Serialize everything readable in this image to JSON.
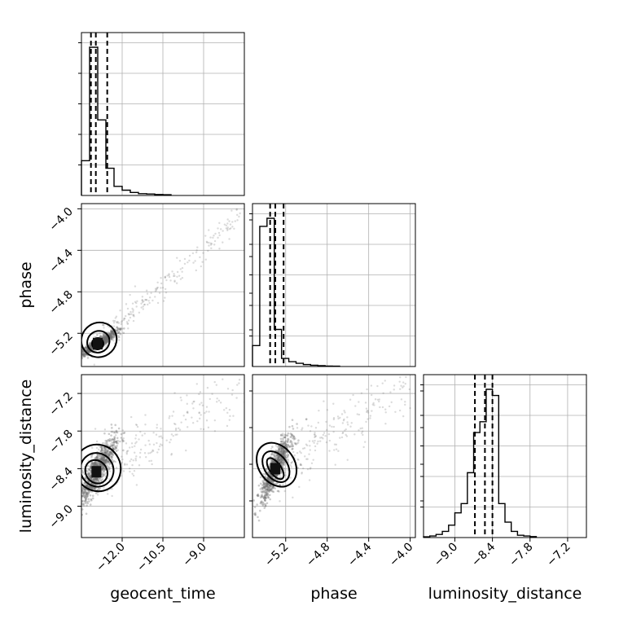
{
  "chart_data": {
    "type": "corner",
    "parameters": [
      "geocent_time",
      "phase",
      "luminosity_distance"
    ],
    "ranges": {
      "geocent_time": [
        -13.5,
        -7.5
      ],
      "phase": [
        -5.52,
        -3.95
      ],
      "luminosity_distance": [
        -9.5,
        -6.9
      ]
    },
    "ticks": {
      "geocent_time": [
        "-12.0",
        "-10.5",
        "-9.0"
      ],
      "phase": [
        "-5.2",
        "-4.8",
        "-4.4",
        "-4.0"
      ],
      "luminosity_distance": [
        "-9.0",
        "-8.4",
        "-7.8",
        "-7.2"
      ]
    },
    "histograms": {
      "geocent_time": {
        "edges": [
          -13.5,
          -13.2,
          -12.9,
          -12.6,
          -12.3,
          -12.0,
          -11.7,
          -11.4,
          -11.1,
          -10.8,
          -10.5,
          -10.2
        ],
        "counts": [
          0.23,
          0.98,
          0.5,
          0.18,
          0.06,
          0.035,
          0.02,
          0.012,
          0.01,
          0.006,
          0.005
        ],
        "quantiles": [
          -13.15,
          -12.97,
          -12.55
        ]
      },
      "phase": {
        "edges": [
          -5.52,
          -5.45,
          -5.38,
          -5.31,
          -5.24,
          -5.17,
          -5.1,
          -5.03,
          -4.96,
          -4.89,
          -4.82,
          -4.75,
          -4.68
        ],
        "counts": [
          0.13,
          0.87,
          0.92,
          0.23,
          0.05,
          0.03,
          0.02,
          0.012,
          0.008,
          0.005,
          0.003,
          0.002
        ],
        "quantiles": [
          -5.35,
          -5.3,
          -5.22
        ]
      },
      "luminosity_distance": {
        "edges": [
          -9.5,
          -9.4,
          -9.3,
          -9.2,
          -9.1,
          -9.0,
          -8.9,
          -8.8,
          -8.7,
          -8.6,
          -8.5,
          -8.4,
          -8.3,
          -8.2,
          -8.1,
          -8.0,
          -7.9,
          -7.8,
          -7.7
        ],
        "counts": [
          0.005,
          0.01,
          0.02,
          0.04,
          0.08,
          0.16,
          0.22,
          0.42,
          0.68,
          0.75,
          0.96,
          0.92,
          0.22,
          0.1,
          0.04,
          0.015,
          0.01,
          0.006
        ],
        "quantiles": [
          -8.68,
          -8.52,
          -8.4
        ]
      }
    },
    "pairs": [
      {
        "x": "geocent_time",
        "y": "phase",
        "center": [
          -12.9,
          -5.3
        ],
        "spread": [
          0.35,
          0.06
        ],
        "correlation": 0.92,
        "tail_to": [
          -7.6,
          -4.05
        ]
      },
      {
        "x": "geocent_time",
        "y": "luminosity_distance",
        "center": [
          -12.95,
          -8.45
        ],
        "spread": [
          0.35,
          0.27
        ],
        "correlation": 0.85,
        "tail_to": [
          -7.6,
          -7.1
        ]
      },
      {
        "x": "phase",
        "y": "luminosity_distance",
        "center": [
          -5.3,
          -8.4
        ],
        "spread": [
          0.07,
          0.25
        ],
        "correlation": 0.85,
        "tail_to": [
          -4.0,
          -7.1
        ]
      }
    ],
    "grid": true
  }
}
